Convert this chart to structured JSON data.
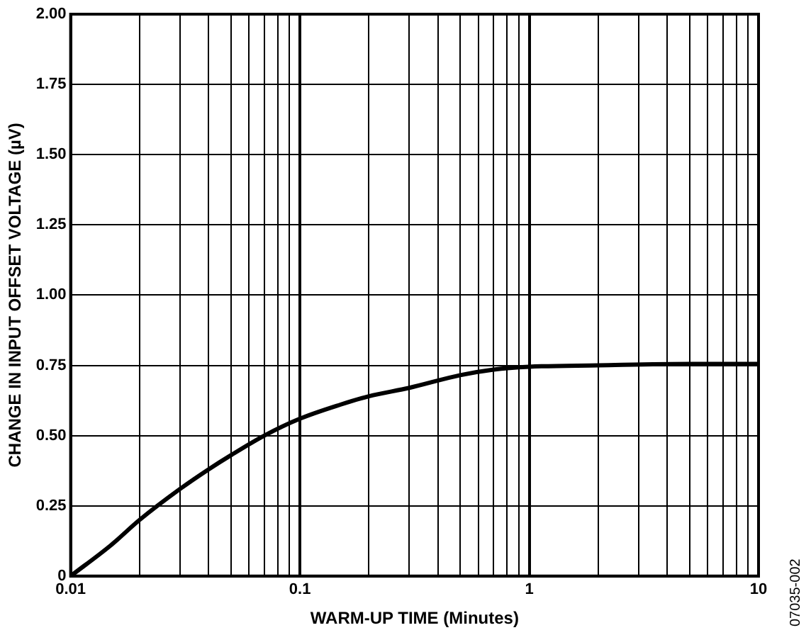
{
  "chart_data": {
    "type": "line",
    "xlabel": "WARM-UP TIME (Minutes)",
    "ylabel": "CHANGE IN INPUT OFFSET VOLTAGE (µV)",
    "annotations": [
      "07035-002"
    ],
    "log": "x",
    "grid": true,
    "legend": false,
    "marker": "none",
    "line_style": "solid",
    "x": [
      0.01,
      0.015,
      0.02,
      0.03,
      0.04,
      0.05,
      0.07,
      0.1,
      0.15,
      0.2,
      0.3,
      0.5,
      0.7,
      1,
      2,
      5,
      10
    ],
    "series": [
      {
        "color": "#000000",
        "values": [
          0,
          0.11,
          0.2,
          0.31,
          0.38,
          0.43,
          0.5,
          0.56,
          0.61,
          0.64,
          0.67,
          0.715,
          0.735,
          0.745,
          0.75,
          0.755,
          0.755
        ]
      }
    ],
    "xlim": [
      0.01,
      10
    ],
    "xticks": [
      0.01,
      {
        "value": 0.02,
        "label": null
      },
      {
        "value": 0.03,
        "label": null
      },
      {
        "value": 0.04,
        "label": null
      },
      {
        "value": 0.05,
        "label": null
      },
      {
        "value": 0.06,
        "label": null
      },
      {
        "value": 0.07,
        "label": null
      },
      {
        "value": 0.08,
        "label": null
      },
      {
        "value": 0.09,
        "label": null
      },
      0.1,
      {
        "value": 0.2,
        "label": null
      },
      {
        "value": 0.3,
        "label": null
      },
      {
        "value": 0.4,
        "label": null
      },
      {
        "value": 0.5,
        "label": null
      },
      {
        "value": 0.6,
        "label": null
      },
      {
        "value": 0.7,
        "label": null
      },
      {
        "value": 0.8,
        "label": null
      },
      {
        "value": 0.9,
        "label": null
      },
      1,
      {
        "value": 2,
        "label": null
      },
      {
        "value": 3,
        "label": null
      },
      {
        "value": 4,
        "label": null
      },
      {
        "value": 5,
        "label": null
      },
      {
        "value": 6,
        "label": null
      },
      {
        "value": 7,
        "label": null
      },
      {
        "value": 8,
        "label": null
      },
      {
        "value": 9,
        "label": null
      },
      10
    ],
    "ylim": [
      0,
      2
    ],
    "yticks": [
      {
        "value": 0,
        "label": "0"
      },
      {
        "value": 0.25,
        "label": "0.25"
      },
      {
        "value": 0.5,
        "label": "0.50"
      },
      {
        "value": 0.75,
        "label": "0.75"
      },
      {
        "value": 1,
        "label": "1.00"
      },
      {
        "value": 1.25,
        "label": "1.25"
      },
      {
        "value": 1.5,
        "label": "1.50"
      },
      {
        "value": 1.75,
        "label": "1.75"
      },
      {
        "value": 2,
        "label": "2.00"
      }
    ]
  }
}
